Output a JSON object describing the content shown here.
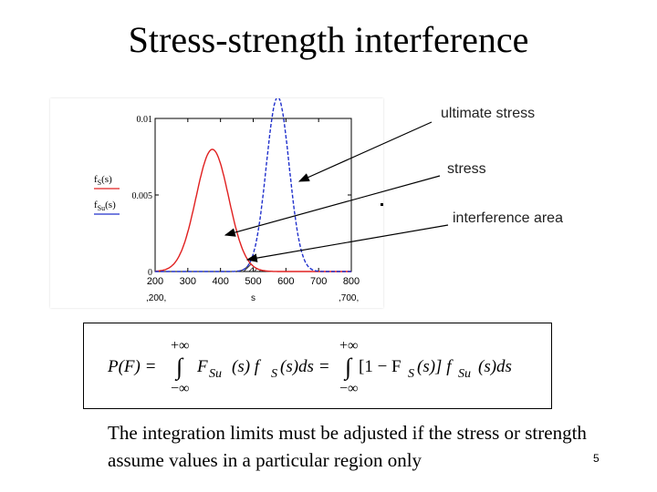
{
  "slide": {
    "title": "Stress-strength interference",
    "page_number": "5",
    "body_text": "The integration limits must be adjusted if the stress or strength assume values in a particular region only"
  },
  "callouts": {
    "ultimate_stress": "ultimate stress",
    "stress": "stress",
    "interference_area": "interference area"
  },
  "chart_data": {
    "type": "line",
    "x_tick_labels": [
      "200",
      "300",
      "400",
      "500",
      "600",
      "700",
      "800"
    ],
    "y_tick_labels": [
      "0",
      "0.005",
      "0.01"
    ],
    "xlim": [
      200,
      800
    ],
    "ylim": [
      0,
      0.01
    ],
    "xlabel": "s",
    "x_range_labels": [
      ",200,",
      ",700,"
    ],
    "legend": [
      "f_S(s)",
      "f_Su(s)"
    ],
    "series": [
      {
        "name": "f_S(s)",
        "color": "#e02020",
        "dash": "solid",
        "mean": 375,
        "sd": 50
      },
      {
        "name": "f_Su(s)",
        "color": "#2030cc",
        "dash": "dashed",
        "mean": 575,
        "sd": 35
      }
    ],
    "hatched_region": [
      450,
      570
    ]
  },
  "equation": {
    "lhs": "P(F) =",
    "upper1": "+∞",
    "lower1": "−∞",
    "integrand1": "F",
    "sub1": "Su",
    "mid1": "(s) f",
    "sub2": "S",
    "tail1": "(s)ds =",
    "upper2": "+∞",
    "lower2": "−∞",
    "integrand2": "[1 − F",
    "sub3": "S",
    "mid2": "(s)] f",
    "sub4": "Su",
    "tail2": "(s)ds",
    "integral_sign": "∫"
  }
}
